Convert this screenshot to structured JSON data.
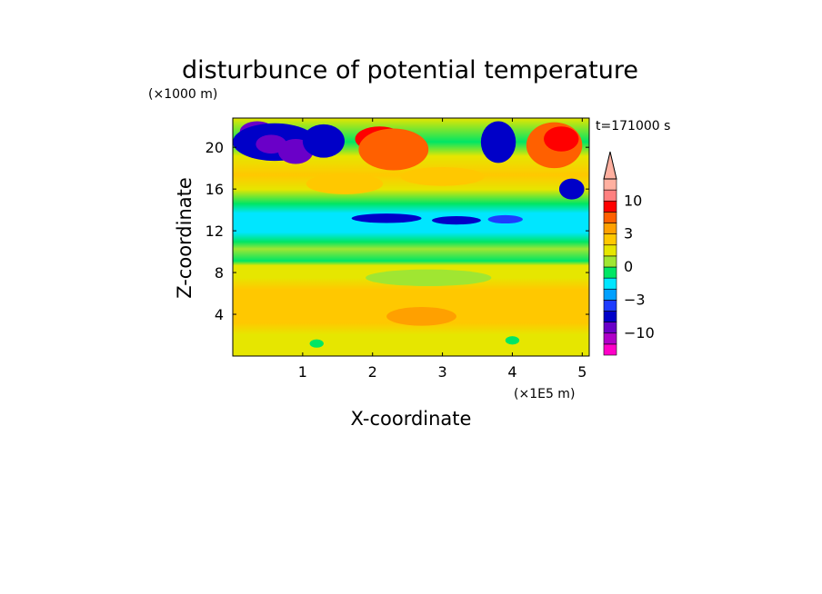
{
  "figure": {
    "title": "disturbunce of potential temperature",
    "y_unit": "(×1000 m)",
    "x_unit": "(×1E5 m)",
    "time_label": "t=171000 s"
  },
  "chart_data": {
    "type": "heatmap",
    "title": "disturbunce of potential temperature",
    "xlabel": "X-coordinate",
    "ylabel": "Z-coordinate",
    "x_unit": "(×1E5 m)",
    "y_unit": "(×1000 m)",
    "xlim": [
      0,
      5.1
    ],
    "ylim": [
      0,
      22.8
    ],
    "x_ticks": [
      1,
      2,
      3,
      4,
      5
    ],
    "y_ticks": [
      4,
      8,
      12,
      16,
      20
    ],
    "annotation": "t=171000 s",
    "colorbar": {
      "tick_values": [
        10,
        3,
        0,
        -3,
        -10
      ],
      "tick_labels": [
        "10",
        "3",
        "0",
        "−3",
        "−10"
      ],
      "levels": [
        -20,
        -13,
        -10,
        -7,
        -5,
        -3,
        -2,
        -1,
        0,
        1,
        2,
        3,
        5,
        7,
        10,
        13,
        20
      ],
      "colors": [
        "#ff00c8",
        "#b000c8",
        "#6a00c8",
        "#0000c8",
        "#1e3cff",
        "#00a0ff",
        "#00e6ff",
        "#00e664",
        "#a0e632",
        "#e6e600",
        "#ffc800",
        "#ffa000",
        "#ff6000",
        "#ff0000",
        "#ff8080",
        "#ffb0a0"
      ]
    },
    "field_description_layers": [
      {
        "z_range": [
          0,
          8
        ],
        "value_range": [
          1,
          4
        ]
      },
      {
        "z_range": [
          8,
          15
        ],
        "value_range": [
          -2,
          0
        ]
      },
      {
        "z_range": [
          15,
          22.8
        ],
        "value_range": [
          -10,
          10
        ]
      }
    ]
  }
}
